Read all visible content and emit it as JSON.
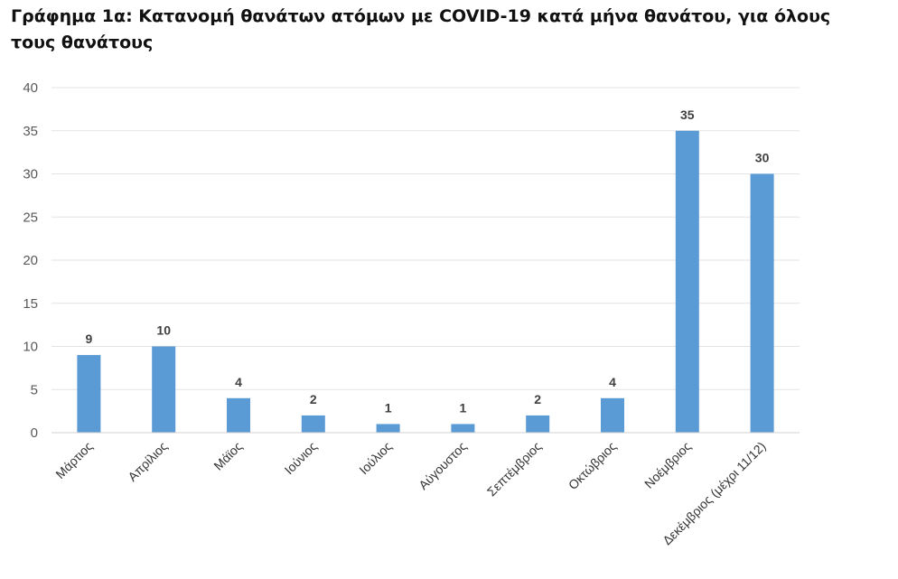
{
  "chart_data": {
    "type": "bar",
    "title": "Γράφημα 1α: Κατανομή θανάτων ατόμων με COVID-19 κατά μήνα θανάτου, για όλους τους θανάτους",
    "xlabel": "",
    "ylabel": "",
    "categories": [
      "Μάρτιος",
      "Απρίλιος",
      "Μάϊος",
      "Ιούνιος",
      "Ιούλιος",
      "Αύγουστος",
      "Σεπτέμβριος",
      "Οκτώβριος",
      "Νοέμβριος",
      "Δεκέμβριος (μέχρι 11/12)"
    ],
    "values": [
      9,
      10,
      4,
      2,
      1,
      1,
      2,
      4,
      35,
      30
    ],
    "ylim": [
      0,
      40
    ],
    "yticks": [
      0,
      5,
      10,
      15,
      20,
      25,
      30,
      35,
      40
    ],
    "bar_color": "#5b9bd5",
    "grid": true,
    "data_labels": true,
    "legend": "none"
  }
}
